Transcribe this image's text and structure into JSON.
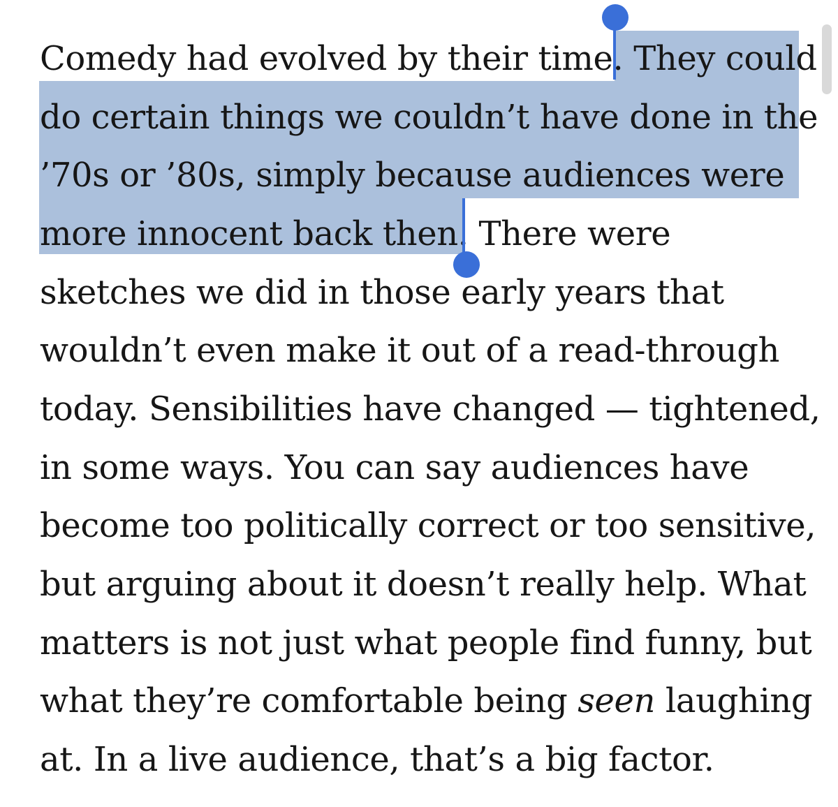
{
  "article": {
    "lines": [
      {
        "before": "Comedy had evolved by their time. ",
        "selected": "They could",
        "after": ""
      },
      {
        "before": "",
        "selected": "do certain things we couldn’t have done in the",
        "after": ""
      },
      {
        "before": "",
        "selected": "’70s or ’80s, simply because audiences were",
        "after": ""
      },
      {
        "before": "",
        "selected": "more innocent back then.",
        "after": " There were"
      },
      {
        "text": "sketches we did in those early years that"
      },
      {
        "text": "wouldn’t even make it out of a read-through"
      },
      {
        "text": "today. Sensibilities have changed — tightened,"
      },
      {
        "text": "in some ways. You can say audiences have"
      },
      {
        "text": "become too politically correct or too sensitive,"
      },
      {
        "text": "but arguing about it doesn’t really help. What"
      },
      {
        "text": "matters is not just what people find funny, but"
      },
      {
        "pre": "what they’re comfortable being ",
        "em": "seen",
        "post": " laughing"
      },
      {
        "text": "at. In a live audience, that’s a big factor."
      }
    ]
  },
  "selection": {
    "highlight_color": "#abc0dc",
    "handle_color": "#3a6fd8"
  }
}
